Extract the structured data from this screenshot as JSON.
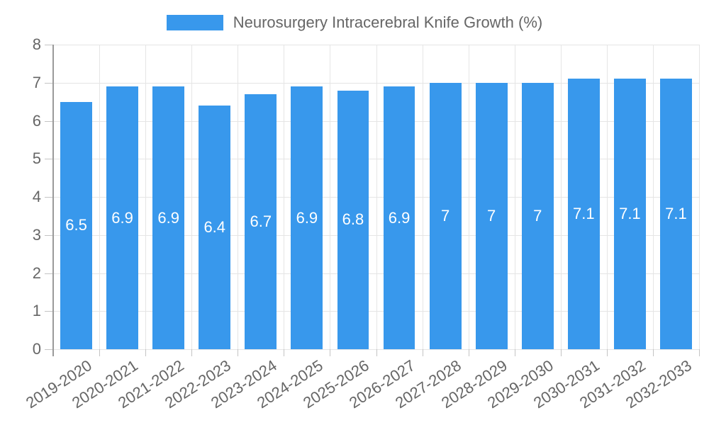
{
  "chart_data": {
    "type": "bar",
    "title": "Neurosurgery Intracerebral Knife Growth (%)",
    "categories": [
      "2019-2020",
      "2020-2021",
      "2021-2022",
      "2022-2023",
      "2023-2024",
      "2024-2025",
      "2025-2026",
      "2026-2027",
      "2027-2028",
      "2028-2029",
      "2029-2030",
      "2030-2031",
      "2031-2032",
      "2032-2033"
    ],
    "values": [
      6.5,
      6.9,
      6.9,
      6.4,
      6.7,
      6.9,
      6.8,
      6.9,
      7,
      7,
      7,
      7.1,
      7.1,
      7.1
    ],
    "xlabel": "",
    "ylabel": "",
    "ylim": [
      0,
      8
    ],
    "yticks": [
      0,
      1,
      2,
      3,
      4,
      5,
      6,
      7,
      8
    ],
    "grid": true,
    "legend_position": "top",
    "colors": {
      "bar": "#3898ec",
      "value_label": "#ffffff",
      "axis_text": "#666666",
      "gridline": "#e5e5e5",
      "axis_line": "#9a9a9a",
      "tick_mark": "#c4c4c4",
      "background": "#ffffff"
    }
  }
}
